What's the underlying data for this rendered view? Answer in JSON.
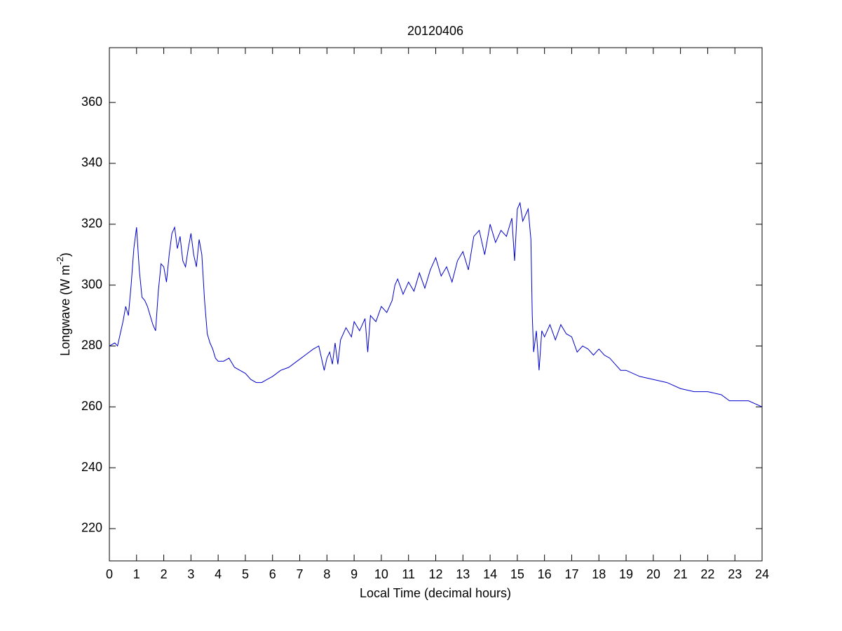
{
  "chart_data": {
    "type": "line",
    "title": "20120406",
    "xlabel": "Local Time (decimal hours)",
    "ylabel": {
      "text": "Longwave (W m",
      "sup": "-2",
      "end": ")"
    },
    "xlim": [
      0,
      24
    ],
    "xticks": [
      0,
      1,
      2,
      3,
      4,
      5,
      6,
      7,
      8,
      9,
      10,
      11,
      12,
      13,
      14,
      15,
      16,
      17,
      18,
      19,
      20,
      21,
      22,
      23,
      24
    ],
    "ylim": [
      209.4,
      378
    ],
    "yticks": [
      220,
      240,
      260,
      280,
      300,
      320,
      340,
      360
    ],
    "grid": false,
    "series": [
      {
        "color": "#0000cc",
        "x": [
          0,
          0.2,
          0.3,
          0.4,
          0.5,
          0.6,
          0.7,
          0.8,
          0.9,
          1.0,
          1.1,
          1.2,
          1.3,
          1.4,
          1.5,
          1.6,
          1.7,
          1.8,
          1.9,
          2.0,
          2.1,
          2.2,
          2.3,
          2.4,
          2.5,
          2.6,
          2.7,
          2.8,
          2.9,
          3.0,
          3.1,
          3.2,
          3.3,
          3.4,
          3.5,
          3.6,
          3.7,
          3.8,
          3.9,
          4.0,
          4.2,
          4.4,
          4.6,
          4.8,
          5.0,
          5.2,
          5.4,
          5.6,
          5.8,
          6.0,
          6.3,
          6.6,
          6.9,
          7.2,
          7.5,
          7.7,
          7.8,
          7.9,
          8.0,
          8.1,
          8.2,
          8.3,
          8.4,
          8.5,
          8.7,
          8.9,
          9.0,
          9.2,
          9.4,
          9.5,
          9.6,
          9.8,
          10.0,
          10.2,
          10.4,
          10.5,
          10.6,
          10.8,
          11.0,
          11.2,
          11.4,
          11.6,
          11.8,
          12.0,
          12.2,
          12.4,
          12.6,
          12.8,
          13.0,
          13.2,
          13.4,
          13.6,
          13.8,
          14.0,
          14.2,
          14.4,
          14.6,
          14.8,
          14.9,
          15.0,
          15.1,
          15.2,
          15.4,
          15.5,
          15.55,
          15.6,
          15.7,
          15.8,
          15.9,
          16.0,
          16.2,
          16.4,
          16.6,
          16.8,
          17.0,
          17.2,
          17.4,
          17.6,
          17.8,
          18.0,
          18.2,
          18.4,
          18.6,
          18.8,
          19.0,
          19.5,
          20.0,
          20.5,
          21.0,
          21.5,
          22.0,
          22.5,
          22.8,
          23.0,
          23.5,
          24
        ],
        "values": [
          280,
          281,
          280,
          284,
          288,
          293,
          290,
          300,
          312,
          319,
          305,
          296,
          295,
          293,
          290,
          287,
          285,
          298,
          307,
          306,
          301,
          310,
          317,
          319,
          312,
          316,
          308,
          306,
          312,
          317,
          310,
          306,
          315,
          310,
          295,
          284,
          281,
          279,
          276,
          275,
          275,
          276,
          273,
          272,
          271,
          269,
          268,
          268,
          269,
          270,
          272,
          273,
          275,
          277,
          279,
          280,
          276,
          272,
          276,
          278,
          274,
          281,
          274,
          282,
          286,
          283,
          288,
          285,
          289,
          278,
          290,
          288,
          293,
          291,
          295,
          300,
          302,
          297,
          301,
          298,
          304,
          299,
          305,
          309,
          303,
          306,
          301,
          308,
          311,
          305,
          316,
          318,
          310,
          320,
          314,
          318,
          316,
          322,
          308,
          325,
          327,
          321,
          325,
          315,
          290,
          278,
          285,
          272,
          285,
          283,
          287,
          282,
          287,
          284,
          283,
          278,
          280,
          279,
          277,
          279,
          277,
          276,
          274,
          272,
          272,
          270,
          269,
          268,
          266,
          265,
          265,
          264,
          262,
          262,
          262,
          260
        ]
      }
    ]
  }
}
